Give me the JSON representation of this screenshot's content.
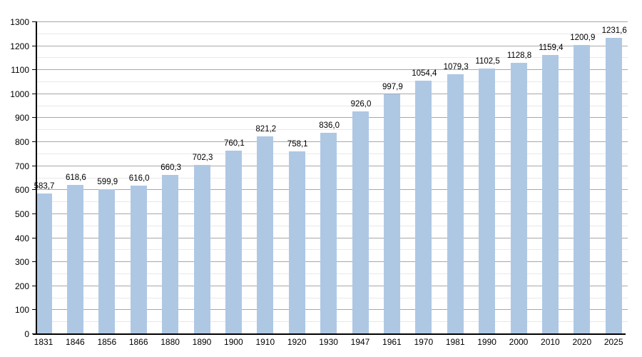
{
  "chart_data": {
    "type": "bar",
    "title": "",
    "xlabel": "",
    "ylabel": "",
    "categories": [
      "1831",
      "1846",
      "1856",
      "1866",
      "1880",
      "1890",
      "1900",
      "1910",
      "1920",
      "1930",
      "1947",
      "1961",
      "1970",
      "1981",
      "1990",
      "2000",
      "2010",
      "2020",
      "2025"
    ],
    "values": [
      583.7,
      618.6,
      599.9,
      616.0,
      660.3,
      702.3,
      760.1,
      821.2,
      758.1,
      836.0,
      926.0,
      997.9,
      1054.4,
      1079.3,
      1102.5,
      1128.8,
      1159.4,
      1200.9,
      1231.6
    ],
    "value_labels": [
      "583,7",
      "618,6",
      "599,9",
      "616,0",
      "660,3",
      "702,3",
      "760,1",
      "821,2",
      "758,1",
      "836,0",
      "926,0",
      "997,9",
      "1054,4",
      "1079,3",
      "1102,5",
      "1128,8",
      "1159,4",
      "1200,9",
      "1231,6"
    ],
    "ylim": [
      0,
      1300
    ],
    "y_major_tick_labels": [
      "0",
      "100",
      "200",
      "300",
      "400",
      "500",
      "600",
      "700",
      "800",
      "900",
      "1000",
      "1100",
      "1200",
      "1300"
    ],
    "y_major_step": 100,
    "y_minor_step": 50,
    "grid": "horizontal",
    "legend": "none",
    "colors": {
      "bar_fill": "#aec8e4",
      "grid_major": "#a8a8a8",
      "grid_minor": "#e8e8e8",
      "axis": "#000000",
      "text": "#000000",
      "background": "#ffffff"
    }
  }
}
